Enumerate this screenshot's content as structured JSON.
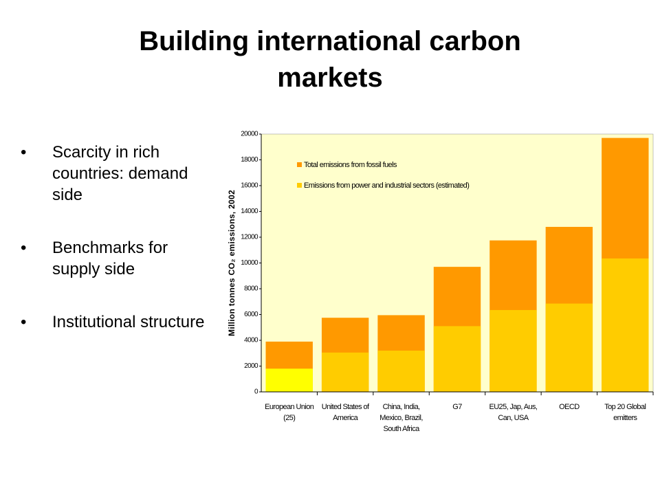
{
  "slide": {
    "title": "Building international carbon markets",
    "bullets": [
      "Scarcity in rich countries: demand side",
      "Benchmarks for supply side",
      "Institutional structure"
    ]
  },
  "chart_data": {
    "type": "bar",
    "overlap": true,
    "y_label": "Million tonnes CO₂ emissions, 2002",
    "categories": [
      [
        "European Union",
        "(25)"
      ],
      [
        "United States of",
        "America"
      ],
      [
        "China, India,",
        "Mexico, Brazil,",
        "South Africa"
      ],
      [
        "G7"
      ],
      [
        "EU25, Jap, Aus,",
        "Can, USA"
      ],
      [
        "OECD"
      ],
      [
        "Top 20 Global",
        "emitters"
      ]
    ],
    "series": [
      {
        "name": "Total emissions from fossil fuels",
        "color": "#ff9900",
        "values": [
          3900,
          5750,
          5950,
          9700,
          11750,
          12800,
          19700
        ]
      },
      {
        "name": "Emissions from power and industrial sectors (estimated)",
        "color": "#ffcc00",
        "colors": [
          "#ffff00",
          "#ffcc00",
          "#ffcc00",
          "#ffcc00",
          "#ffcc00",
          "#ffcc00",
          "#ffcc00"
        ],
        "values": [
          1800,
          3050,
          3200,
          5100,
          6350,
          6850,
          10350
        ]
      }
    ],
    "ylim": [
      0,
      20000
    ],
    "yticks": [
      0,
      2000,
      4000,
      6000,
      8000,
      10000,
      12000,
      14000,
      16000,
      18000,
      20000
    ],
    "plot_background": "#ffffcc",
    "legend": "top-left"
  }
}
